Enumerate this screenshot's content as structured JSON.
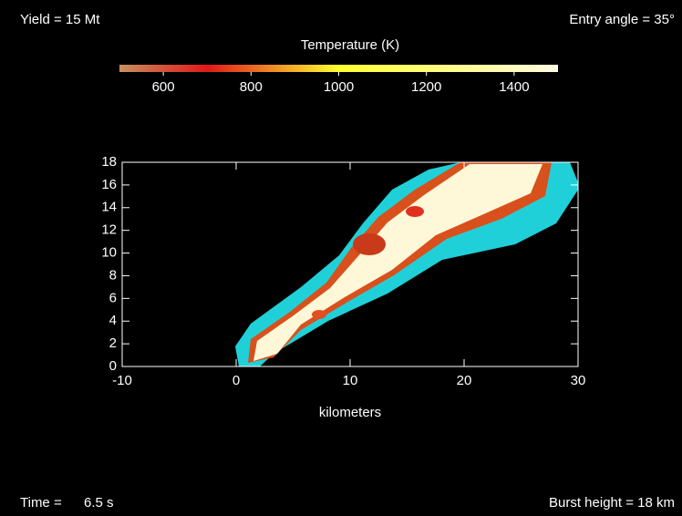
{
  "chart_data": {
    "type": "plume",
    "annotations": {
      "yield": "Yield = 15 Mt",
      "angle": "Entry angle = 35°",
      "time_label": "Time =",
      "time_value": "6.5 s",
      "burst": "Burst height = 18 km"
    },
    "colorbar": {
      "title": "Temperature (K)",
      "lim": [
        500,
        1500
      ],
      "ticks": [
        600,
        800,
        1000,
        1200,
        1400
      ]
    },
    "x_label": "kilometers",
    "xlim": [
      -10,
      30
    ],
    "xticks": [
      -10,
      0,
      10,
      20,
      30
    ],
    "ylim": [
      0,
      18
    ],
    "yticks": [
      0,
      2,
      4,
      6,
      8,
      10,
      12,
      14,
      16,
      18
    ]
  }
}
